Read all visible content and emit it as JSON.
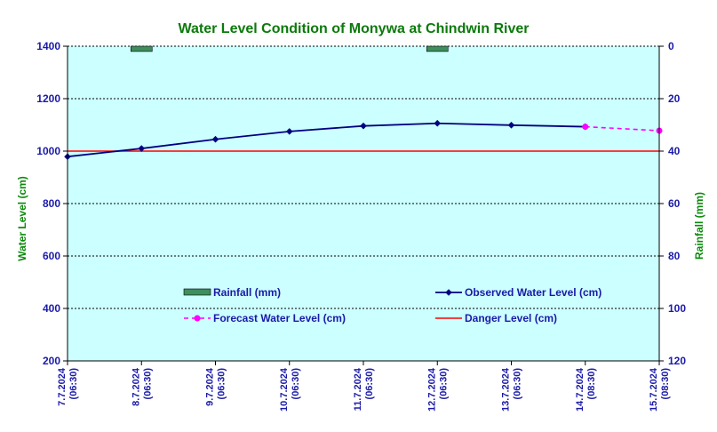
{
  "chart_data": {
    "type": "line",
    "title": "Water Level Condition of Monywa at Chindwin River",
    "ylabel": "Water Level (cm)",
    "y2label": "Rainfall (mm)",
    "ylim": [
      200,
      1400
    ],
    "y_ticks": [
      200,
      400,
      600,
      800,
      1000,
      1200,
      1400
    ],
    "y2lim": [
      0,
      120
    ],
    "y2_inverted": true,
    "y2_ticks": [
      0,
      20,
      40,
      60,
      80,
      100,
      120
    ],
    "x_labels": [
      [
        "7.7.2024",
        "(06:30)"
      ],
      [
        "8.7.2024",
        "(06:30)"
      ],
      [
        "9.7.2024",
        "(06:30)"
      ],
      [
        "10.7.2024",
        "(06:30)"
      ],
      [
        "11.7.2024",
        "(06:30)"
      ],
      [
        "12.7.2024",
        "(06:30)"
      ],
      [
        "13.7.2024",
        "(06:30)"
      ],
      [
        "14.7.2024",
        "(08:30)"
      ],
      [
        "15.7.2024",
        "(08:30)"
      ]
    ],
    "grid": true,
    "series": [
      {
        "name": "Rainfall (mm)",
        "kind": "bar",
        "axis": "right",
        "color": "#3e8e5e",
        "values": [
          null,
          2,
          null,
          null,
          null,
          2,
          null,
          null,
          null
        ]
      },
      {
        "name": "Observed Water Level (cm)",
        "kind": "line",
        "axis": "left",
        "color": "#000080",
        "values": [
          979,
          1010,
          1045,
          1075,
          1096,
          1106,
          1099,
          1093,
          null
        ]
      },
      {
        "name": "Forecast Water Level (cm)",
        "kind": "dashed-line",
        "axis": "left",
        "color": "#ff00ff",
        "values": [
          null,
          null,
          null,
          null,
          null,
          null,
          null,
          1093,
          1078
        ]
      },
      {
        "name": "Danger Level (cm)",
        "kind": "hline",
        "axis": "left",
        "color": "#ff0000",
        "value": 1000
      }
    ],
    "plot_background": "#ccffff"
  }
}
